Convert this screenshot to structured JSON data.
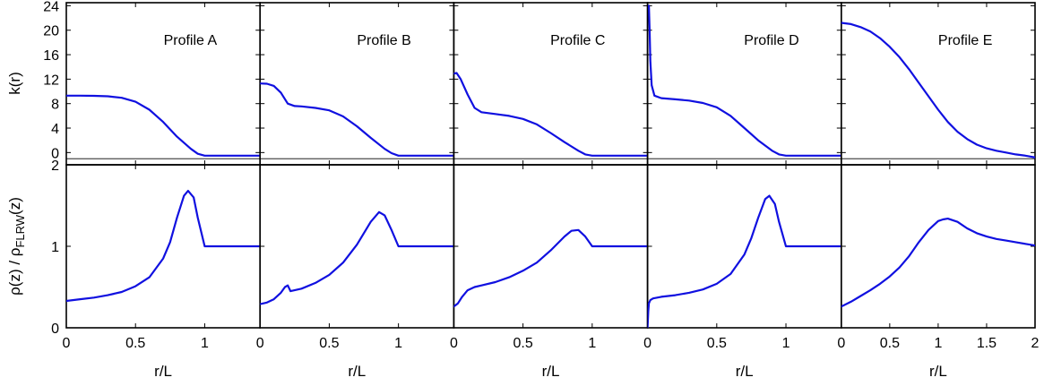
{
  "chart_data": {
    "type": "line",
    "panels": [
      {
        "title": "Profile A",
        "xlim": [
          0,
          1.4
        ],
        "xticks": [
          0,
          0.5,
          1
        ],
        "xtick_labels": [
          "0",
          "0.5",
          "1"
        ],
        "k": {
          "x": [
            0,
            0.1,
            0.2,
            0.3,
            0.4,
            0.5,
            0.6,
            0.7,
            0.8,
            0.9,
            0.95,
            1.0,
            1.2,
            1.4
          ],
          "y": [
            9.3,
            9.3,
            9.28,
            9.2,
            8.95,
            8.3,
            7.0,
            5.0,
            2.6,
            0.6,
            -0.2,
            -0.5,
            -0.5,
            -0.5
          ]
        },
        "rho": {
          "x": [
            0,
            0.1,
            0.2,
            0.3,
            0.4,
            0.5,
            0.6,
            0.7,
            0.75,
            0.8,
            0.85,
            0.88,
            0.92,
            0.95,
            1.0,
            1.2,
            1.4
          ],
          "y": [
            0.33,
            0.35,
            0.37,
            0.4,
            0.44,
            0.51,
            0.62,
            0.85,
            1.05,
            1.35,
            1.62,
            1.68,
            1.6,
            1.35,
            1.0,
            1.0,
            1.0
          ]
        }
      },
      {
        "title": "Profile B",
        "xlim": [
          0,
          1.4
        ],
        "xticks": [
          0,
          0.5,
          1
        ],
        "xtick_labels": [
          "0",
          "0.5",
          "1"
        ],
        "k": {
          "x": [
            0,
            0.05,
            0.1,
            0.15,
            0.2,
            0.25,
            0.3,
            0.4,
            0.5,
            0.6,
            0.7,
            0.8,
            0.9,
            0.95,
            1.0,
            1.2,
            1.4
          ],
          "y": [
            11.3,
            11.25,
            10.9,
            9.8,
            8.0,
            7.6,
            7.55,
            7.3,
            6.9,
            5.9,
            4.3,
            2.4,
            0.6,
            -0.1,
            -0.5,
            -0.5,
            -0.5
          ]
        },
        "rho": {
          "x": [
            0,
            0.05,
            0.1,
            0.15,
            0.18,
            0.2,
            0.22,
            0.3,
            0.4,
            0.5,
            0.6,
            0.7,
            0.8,
            0.86,
            0.9,
            0.95,
            1.0,
            1.2,
            1.4
          ],
          "y": [
            0.29,
            0.31,
            0.35,
            0.43,
            0.5,
            0.52,
            0.45,
            0.48,
            0.55,
            0.65,
            0.8,
            1.02,
            1.3,
            1.42,
            1.38,
            1.2,
            1.0,
            1.0,
            1.0
          ]
        }
      },
      {
        "title": "Profile C",
        "xlim": [
          0,
          1.4
        ],
        "xticks": [
          0,
          0.5,
          1
        ],
        "xtick_labels": [
          "0",
          "0.5",
          "1"
        ],
        "k": {
          "x": [
            0,
            0.02,
            0.05,
            0.1,
            0.15,
            0.2,
            0.3,
            0.4,
            0.5,
            0.6,
            0.7,
            0.8,
            0.9,
            0.95,
            1.0,
            1.2,
            1.4
          ],
          "y": [
            12.9,
            13.0,
            12.0,
            9.5,
            7.3,
            6.6,
            6.3,
            6.0,
            5.5,
            4.6,
            3.2,
            1.7,
            0.3,
            -0.3,
            -0.5,
            -0.5,
            -0.5
          ]
        },
        "rho": {
          "x": [
            0,
            0.03,
            0.06,
            0.1,
            0.15,
            0.2,
            0.3,
            0.4,
            0.5,
            0.6,
            0.7,
            0.8,
            0.85,
            0.9,
            0.95,
            1.0,
            1.2,
            1.4
          ],
          "y": [
            0.26,
            0.3,
            0.38,
            0.46,
            0.5,
            0.52,
            0.56,
            0.62,
            0.7,
            0.8,
            0.95,
            1.12,
            1.19,
            1.2,
            1.12,
            1.0,
            1.0,
            1.0
          ]
        }
      },
      {
        "title": "Profile D",
        "xlim": [
          0,
          1.4
        ],
        "xticks": [
          0,
          0.5,
          1
        ],
        "xtick_labels": [
          "0",
          "0.5",
          "1"
        ],
        "k": {
          "x": [
            0.01,
            0.015,
            0.02,
            0.03,
            0.05,
            0.1,
            0.2,
            0.3,
            0.4,
            0.5,
            0.6,
            0.7,
            0.8,
            0.9,
            0.95,
            1.0,
            1.2,
            1.4
          ],
          "y": [
            24,
            20,
            15,
            11,
            9.3,
            8.9,
            8.7,
            8.5,
            8.1,
            7.4,
            6.0,
            4.0,
            2.0,
            0.3,
            -0.3,
            -0.5,
            -0.5,
            -0.5
          ]
        },
        "rho": {
          "x": [
            0,
            0.005,
            0.01,
            0.02,
            0.04,
            0.1,
            0.2,
            0.3,
            0.4,
            0.5,
            0.6,
            0.7,
            0.75,
            0.8,
            0.85,
            0.88,
            0.92,
            0.95,
            1.0,
            1.2,
            1.4
          ],
          "y": [
            0.0,
            0.2,
            0.3,
            0.34,
            0.36,
            0.38,
            0.4,
            0.43,
            0.47,
            0.54,
            0.66,
            0.9,
            1.1,
            1.35,
            1.58,
            1.62,
            1.52,
            1.3,
            1.0,
            1.0,
            1.0
          ]
        }
      },
      {
        "title": "Profile E",
        "xlim": [
          0,
          2
        ],
        "xticks": [
          0,
          0.5,
          1,
          1.5,
          2
        ],
        "xtick_labels": [
          "0",
          "0.5",
          "1",
          "1.5",
          "2"
        ],
        "k": {
          "x": [
            0,
            0.1,
            0.2,
            0.3,
            0.4,
            0.5,
            0.6,
            0.7,
            0.8,
            0.9,
            1.0,
            1.1,
            1.2,
            1.3,
            1.4,
            1.5,
            1.6,
            1.7,
            1.8,
            1.9,
            2.0
          ],
          "y": [
            21.2,
            21.0,
            20.5,
            19.8,
            18.7,
            17.3,
            15.6,
            13.6,
            11.4,
            9.2,
            7.0,
            5.0,
            3.4,
            2.2,
            1.3,
            0.7,
            0.3,
            0.0,
            -0.3,
            -0.5,
            -0.8
          ]
        },
        "rho": {
          "x": [
            0,
            0.1,
            0.2,
            0.3,
            0.4,
            0.5,
            0.6,
            0.7,
            0.8,
            0.9,
            1.0,
            1.05,
            1.1,
            1.2,
            1.3,
            1.4,
            1.5,
            1.6,
            1.7,
            1.8,
            1.9,
            2.0
          ],
          "y": [
            0.26,
            0.32,
            0.39,
            0.46,
            0.54,
            0.63,
            0.74,
            0.88,
            1.05,
            1.2,
            1.31,
            1.33,
            1.34,
            1.3,
            1.22,
            1.16,
            1.12,
            1.09,
            1.07,
            1.05,
            1.03,
            1.01
          ]
        }
      }
    ],
    "top": {
      "ylabel": "k(r)",
      "ylim": [
        -2,
        24.5
      ],
      "yticks": [
        0,
        4,
        8,
        12,
        16,
        20,
        24
      ],
      "ytick_labels": [
        "0",
        "4",
        "8",
        "12",
        "16",
        "20",
        "24"
      ],
      "reference_line_y": -1
    },
    "bottom": {
      "ylabel_main": "ρ(z) / ρ",
      "ylabel_sub": "FLRW",
      "ylabel_tail": "(z)",
      "ylim": [
        0,
        2
      ],
      "yticks": [
        0,
        1,
        2
      ],
      "ytick_labels": [
        "0",
        "1",
        "2"
      ]
    },
    "xlabel": "r/L",
    "line_color": "#1010e0",
    "axis_color": "#000000",
    "grid": false
  }
}
